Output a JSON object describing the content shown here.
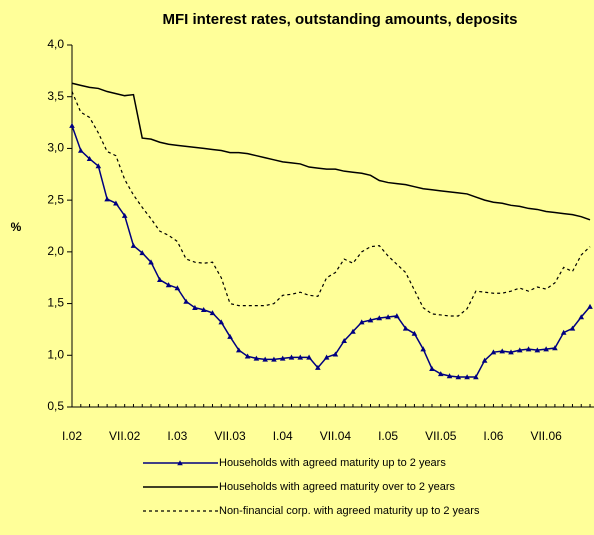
{
  "chart_data": {
    "type": "line",
    "title": "MFI interest rates, outstanding amounts, deposits",
    "y_label": "%",
    "categories": [
      "I.02",
      null,
      null,
      null,
      null,
      null,
      "VII.02",
      null,
      null,
      null,
      null,
      null,
      "I.03",
      null,
      null,
      null,
      null,
      null,
      "VII.03",
      null,
      null,
      null,
      null,
      null,
      "I.04",
      null,
      null,
      null,
      null,
      null,
      "VII.04",
      null,
      null,
      null,
      null,
      null,
      "I.05",
      null,
      null,
      null,
      null,
      null,
      "VII.05",
      null,
      null,
      null,
      null,
      null,
      "I.06",
      null,
      null,
      null,
      null,
      null,
      "VII.06",
      null,
      null,
      null,
      null,
      null
    ],
    "ylim": [
      0.5,
      4.0
    ],
    "yticks": [
      {
        "value": 0.5,
        "label": "0,5"
      },
      {
        "value": 1.0,
        "label": "1,0"
      },
      {
        "value": 1.5,
        "label": "1,5"
      },
      {
        "value": 2.0,
        "label": "2,0"
      },
      {
        "value": 2.5,
        "label": "2,5"
      },
      {
        "value": 3.0,
        "label": "3,0"
      },
      {
        "value": 3.5,
        "label": "3,5"
      },
      {
        "value": 4.0,
        "label": "4,0"
      }
    ],
    "grid": false,
    "legend": "bottom",
    "series": [
      {
        "name": "Households with agreed maturity up to 2 years",
        "color": "#000080",
        "style": "solid",
        "marker": "triangle",
        "values": [
          3.22,
          2.98,
          2.9,
          2.83,
          2.51,
          2.47,
          2.35,
          2.06,
          1.99,
          1.9,
          1.73,
          1.68,
          1.65,
          1.52,
          1.46,
          1.44,
          1.41,
          1.32,
          1.18,
          1.05,
          0.99,
          0.97,
          0.96,
          0.96,
          0.97,
          0.98,
          0.98,
          0.98,
          0.88,
          0.98,
          1.01,
          1.14,
          1.23,
          1.32,
          1.34,
          1.36,
          1.37,
          1.38,
          1.26,
          1.21,
          1.06,
          0.87,
          0.82,
          0.8,
          0.79,
          0.79,
          0.79,
          0.95,
          1.03,
          1.04,
          1.03,
          1.05,
          1.06,
          1.05,
          1.06,
          1.07,
          1.22,
          1.26,
          1.37,
          1.47
        ]
      },
      {
        "name": "Households with agreed maturity over to 2 years",
        "color": "#000000",
        "style": "solid",
        "marker": null,
        "values": [
          3.63,
          3.61,
          3.59,
          3.58,
          3.55,
          3.53,
          3.51,
          3.52,
          3.1,
          3.09,
          3.06,
          3.04,
          3.03,
          3.02,
          3.01,
          3.0,
          2.99,
          2.98,
          2.96,
          2.96,
          2.95,
          2.93,
          2.91,
          2.89,
          2.87,
          2.86,
          2.85,
          2.82,
          2.81,
          2.8,
          2.8,
          2.78,
          2.77,
          2.76,
          2.74,
          2.69,
          2.67,
          2.66,
          2.65,
          2.63,
          2.61,
          2.6,
          2.59,
          2.58,
          2.57,
          2.56,
          2.53,
          2.5,
          2.48,
          2.47,
          2.45,
          2.44,
          2.42,
          2.41,
          2.39,
          2.38,
          2.37,
          2.36,
          2.34,
          2.31
        ]
      },
      {
        "name": "Non-financial corp. with agreed maturity up to 2 years",
        "color": "#000000",
        "style": "dotted",
        "marker": null,
        "values": [
          3.55,
          3.35,
          3.3,
          3.15,
          2.97,
          2.93,
          2.7,
          2.55,
          2.43,
          2.32,
          2.2,
          2.16,
          2.1,
          1.93,
          1.9,
          1.89,
          1.9,
          1.75,
          1.5,
          1.48,
          1.48,
          1.48,
          1.48,
          1.5,
          1.58,
          1.59,
          1.61,
          1.58,
          1.57,
          1.75,
          1.8,
          1.93,
          1.89,
          2.0,
          2.05,
          2.06,
          1.96,
          1.88,
          1.8,
          1.63,
          1.46,
          1.4,
          1.39,
          1.38,
          1.38,
          1.45,
          1.62,
          1.61,
          1.6,
          1.6,
          1.62,
          1.65,
          1.62,
          1.66,
          1.64,
          1.7,
          1.85,
          1.81,
          1.97,
          2.05
        ]
      }
    ]
  }
}
